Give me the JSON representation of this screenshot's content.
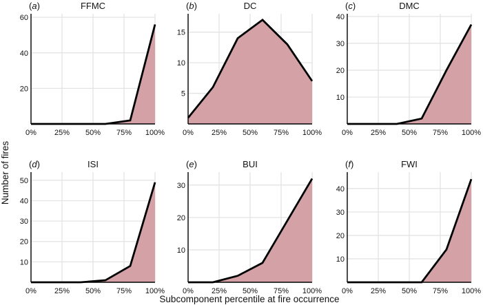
{
  "figure": {
    "ylabel": "Number of fires",
    "xlabel": "Subcomponent percentile at fire occurrence"
  },
  "chart_data": [
    {
      "type": "area",
      "letter": "a",
      "title": "FFMC",
      "x": [
        0,
        20,
        40,
        60,
        80,
        100
      ],
      "values": [
        0,
        0,
        0,
        0,
        2,
        56
      ],
      "xlim": [
        0,
        100
      ],
      "ylim": [
        0,
        62
      ],
      "yticks": [
        20,
        40,
        60
      ],
      "xtick_labels": [
        "0%",
        "25%",
        "50%",
        "75%",
        "100%"
      ]
    },
    {
      "type": "area",
      "letter": "b",
      "title": "DC",
      "x": [
        0,
        20,
        40,
        60,
        80,
        100
      ],
      "values": [
        1,
        6,
        14,
        17,
        13,
        7
      ],
      "xlim": [
        0,
        100
      ],
      "ylim": [
        0,
        18
      ],
      "yticks": [
        5,
        10,
        15
      ],
      "xtick_labels": [
        "0%",
        "25%",
        "50%",
        "75%",
        "100%"
      ]
    },
    {
      "type": "area",
      "letter": "c",
      "title": "DMC",
      "x": [
        0,
        20,
        40,
        60,
        80,
        100
      ],
      "values": [
        0,
        0,
        0,
        2,
        20,
        37
      ],
      "xlim": [
        0,
        100
      ],
      "ylim": [
        0,
        41
      ],
      "yticks": [
        10,
        20,
        30,
        40
      ],
      "xtick_labels": [
        "0%",
        "25%",
        "50%",
        "75%",
        "100%"
      ]
    },
    {
      "type": "area",
      "letter": "d",
      "title": "ISI",
      "x": [
        0,
        20,
        40,
        60,
        80,
        100
      ],
      "values": [
        0,
        0,
        0,
        1,
        8,
        49
      ],
      "xlim": [
        0,
        100
      ],
      "ylim": [
        0,
        54
      ],
      "yticks": [
        10,
        20,
        30,
        40,
        50
      ],
      "xtick_labels": [
        "0%",
        "25%",
        "50%",
        "75%",
        "100%"
      ]
    },
    {
      "type": "area",
      "letter": "e",
      "title": "BUI",
      "x": [
        0,
        20,
        40,
        60,
        80,
        100
      ],
      "values": [
        0,
        0,
        2,
        6,
        19,
        32
      ],
      "xlim": [
        0,
        100
      ],
      "ylim": [
        0,
        34
      ],
      "yticks": [
        10,
        20,
        30
      ],
      "xtick_labels": [
        "0%",
        "25%",
        "50%",
        "75%",
        "100%"
      ]
    },
    {
      "type": "area",
      "letter": "f",
      "title": "FWI",
      "x": [
        0,
        20,
        40,
        60,
        80,
        100
      ],
      "values": [
        0,
        0,
        0,
        0,
        14,
        44
      ],
      "xlim": [
        0,
        100
      ],
      "ylim": [
        0,
        47
      ],
      "yticks": [
        10,
        20,
        30,
        40
      ],
      "xtick_labels": [
        "0%",
        "25%",
        "50%",
        "75%",
        "100%"
      ]
    }
  ],
  "colors": {
    "fill": "#d4a1a6",
    "line": "#000000",
    "grid": "#e3e3e3"
  }
}
